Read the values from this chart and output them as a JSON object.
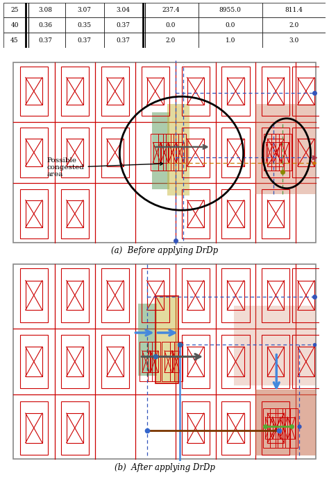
{
  "fig_width": 4.74,
  "fig_height": 7.27,
  "dpi": 100,
  "bg_color": "#ffffff",
  "table_rows": [
    [
      "25",
      "3.08",
      "3.07",
      "3.04",
      "237.4",
      "8955.0",
      "811.4"
    ],
    [
      "40",
      "0.36",
      "0.35",
      "0.37",
      "0.0",
      "0.0",
      "2.0"
    ],
    [
      "45",
      "0.37",
      "0.37",
      "0.37",
      "2.0",
      "1.0",
      "3.0"
    ]
  ],
  "caption_a": "(a)  Before applying DrDp",
  "caption_b": "(b)  After applying DrDp",
  "red": "#cc0000",
  "gray": "#888888",
  "blue_dash": "#3355bb",
  "orange_dash": "#cc7700",
  "dark_gray_arrow": "#555555",
  "blue_arrow": "#4488dd",
  "brown_net": "#7a3500",
  "green_net": "#55aa33",
  "green_rect": "#5a9a5a",
  "yellow_rect": "#c8b840",
  "salmon_rect": "#c87050",
  "black": "#000000"
}
